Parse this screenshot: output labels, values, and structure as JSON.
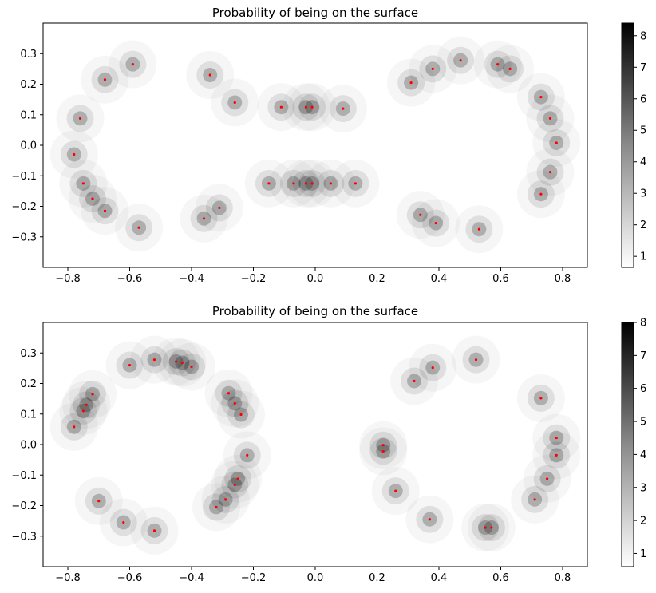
{
  "chart_data": [
    {
      "type": "heatmap",
      "title": "Probability of being on the surface",
      "xlabel": "",
      "ylabel": "",
      "xlim": [
        -0.88,
        0.88
      ],
      "ylim": [
        -0.4,
        0.4
      ],
      "x_ticks": [
        -0.8,
        -0.6,
        -0.4,
        -0.2,
        0.0,
        0.2,
        0.4,
        0.6,
        0.8
      ],
      "x_tick_labels": [
        "−0.8",
        "−0.6",
        "−0.4",
        "−0.2",
        "0.0",
        "0.2",
        "0.4",
        "0.6",
        "0.8"
      ],
      "y_ticks": [
        0.3,
        0.2,
        0.1,
        0.0,
        -0.1,
        -0.2,
        -0.3
      ],
      "y_tick_labels": [
        "0.3",
        "0.2",
        "0.1",
        "0.0",
        "−0.1",
        "−0.2",
        "−0.3"
      ],
      "colormap": "Greys",
      "colorbar": {
        "range": [
          0.65,
          8.4
        ],
        "ticks": [
          1,
          2,
          3,
          4,
          5,
          6,
          7,
          8
        ],
        "tick_labels": [
          "1",
          "2",
          "3",
          "4",
          "5",
          "6",
          "7",
          "8"
        ]
      },
      "grid": false,
      "point_color": "#ff0000",
      "points": [
        [
          -0.59,
          0.265
        ],
        [
          -0.68,
          0.215
        ],
        [
          -0.34,
          0.23
        ],
        [
          -0.26,
          0.14
        ],
        [
          -0.11,
          0.125
        ],
        [
          -0.03,
          0.125
        ],
        [
          -0.01,
          0.125
        ],
        [
          0.09,
          0.12
        ],
        [
          -0.76,
          0.088
        ],
        [
          -0.78,
          -0.03
        ],
        [
          -0.75,
          -0.125
        ],
        [
          -0.72,
          -0.175
        ],
        [
          -0.68,
          -0.215
        ],
        [
          -0.57,
          -0.27
        ],
        [
          -0.36,
          -0.24
        ],
        [
          -0.31,
          -0.205
        ],
        [
          -0.15,
          -0.125
        ],
        [
          -0.07,
          -0.125
        ],
        [
          -0.03,
          -0.125
        ],
        [
          -0.01,
          -0.125
        ],
        [
          0.05,
          -0.125
        ],
        [
          0.13,
          -0.125
        ],
        [
          0.31,
          0.205
        ],
        [
          0.38,
          0.25
        ],
        [
          0.47,
          0.278
        ],
        [
          0.59,
          0.265
        ],
        [
          0.63,
          0.25
        ],
        [
          0.73,
          0.158
        ],
        [
          0.76,
          0.088
        ],
        [
          0.78,
          0.008
        ],
        [
          0.76,
          -0.088
        ],
        [
          0.73,
          -0.16
        ],
        [
          0.34,
          -0.228
        ],
        [
          0.39,
          -0.255
        ],
        [
          0.53,
          -0.275
        ]
      ]
    },
    {
      "type": "heatmap",
      "title": "Probability of being on the surface",
      "xlabel": "",
      "ylabel": "",
      "xlim": [
        -0.88,
        0.88
      ],
      "ylim": [
        -0.4,
        0.4
      ],
      "x_ticks": [
        -0.8,
        -0.6,
        -0.4,
        -0.2,
        0.0,
        0.2,
        0.4,
        0.6,
        0.8
      ],
      "x_tick_labels": [
        "−0.8",
        "−0.6",
        "−0.4",
        "−0.2",
        "0.0",
        "0.2",
        "0.4",
        "0.6",
        "0.8"
      ],
      "y_ticks": [
        0.3,
        0.2,
        0.1,
        0.0,
        -0.1,
        -0.2,
        -0.3
      ],
      "y_tick_labels": [
        "0.3",
        "0.2",
        "0.1",
        "0.0",
        "−0.1",
        "−0.2",
        "−0.3"
      ],
      "colormap": "Greys",
      "colorbar": {
        "range": [
          0.6,
          8.0
        ],
        "ticks": [
          1,
          2,
          3,
          4,
          5,
          6,
          7,
          8
        ],
        "tick_labels": [
          "1",
          "2",
          "3",
          "4",
          "5",
          "6",
          "7",
          "8"
        ]
      },
      "grid": false,
      "point_color": "#ff0000",
      "points": [
        [
          -0.6,
          0.26
        ],
        [
          -0.52,
          0.278
        ],
        [
          -0.45,
          0.272
        ],
        [
          -0.43,
          0.268
        ],
        [
          -0.4,
          0.255
        ],
        [
          -0.72,
          0.165
        ],
        [
          -0.74,
          0.13
        ],
        [
          -0.75,
          0.11
        ],
        [
          -0.78,
          0.058
        ],
        [
          -0.28,
          0.168
        ],
        [
          -0.26,
          0.135
        ],
        [
          -0.24,
          0.098
        ],
        [
          -0.22,
          -0.035
        ],
        [
          -0.25,
          -0.112
        ],
        [
          -0.26,
          -0.132
        ],
        [
          -0.29,
          -0.18
        ],
        [
          -0.32,
          -0.205
        ],
        [
          -0.7,
          -0.185
        ],
        [
          -0.62,
          -0.255
        ],
        [
          -0.52,
          -0.282
        ],
        [
          0.32,
          0.208
        ],
        [
          0.38,
          0.252
        ],
        [
          0.52,
          0.278
        ],
        [
          0.73,
          0.152
        ],
        [
          0.78,
          0.022
        ],
        [
          0.78,
          -0.035
        ],
        [
          0.75,
          -0.112
        ],
        [
          0.71,
          -0.18
        ],
        [
          0.57,
          -0.272
        ],
        [
          0.55,
          -0.272
        ],
        [
          0.37,
          -0.245
        ],
        [
          0.26,
          -0.152
        ],
        [
          0.22,
          -0.002
        ],
        [
          0.22,
          -0.022
        ]
      ]
    }
  ]
}
